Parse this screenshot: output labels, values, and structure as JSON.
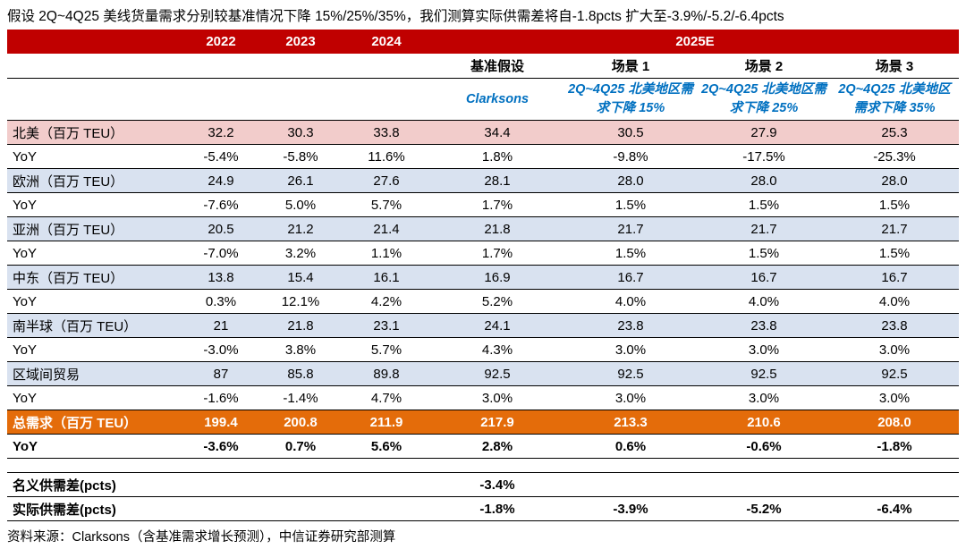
{
  "title": "假设 2Q~4Q25 美线货量需求分别较基准情况下降 15%/25%/35%，我们测算实际供需差将自-1.8pcts 扩大至-3.9%/-5.2/-6.4pcts",
  "source": "资料来源：Clarksons（含基准需求增长预测），中信证券研究部测算",
  "colors": {
    "header_red": "#C00000",
    "row_pink": "#F2CCCB",
    "row_blue": "#D9E2F0",
    "total_orange": "#E46C0A",
    "scenario_blue": "#0070C0"
  },
  "header": {
    "years": [
      "2022",
      "2023",
      "2024"
    ],
    "year_2025": "2025E",
    "sub": [
      "基准假设",
      "场景 1",
      "场景 2",
      "场景 3"
    ],
    "scenario_labels": [
      "Clarksons",
      "2Q~4Q25 北美地区需求下降 15%",
      "2Q~4Q25 北美地区需求下降 25%",
      "2Q~4Q25 北美地区需求下降 35%"
    ]
  },
  "table": {
    "rows": [
      {
        "label": "北美（百万 TEU）",
        "style": "pink",
        "values": [
          "32.2",
          "30.3",
          "33.8",
          "34.4",
          "30.5",
          "27.9",
          "25.3"
        ]
      },
      {
        "label": "YoY",
        "style": "plain",
        "values": [
          "-5.4%",
          "-5.8%",
          "11.6%",
          "1.8%",
          "-9.8%",
          "-17.5%",
          "-25.3%"
        ]
      },
      {
        "label": "欧洲（百万 TEU）",
        "style": "blue",
        "values": [
          "24.9",
          "26.1",
          "27.6",
          "28.1",
          "28.0",
          "28.0",
          "28.0"
        ]
      },
      {
        "label": "YoY",
        "style": "plain",
        "values": [
          "-7.6%",
          "5.0%",
          "5.7%",
          "1.7%",
          "1.5%",
          "1.5%",
          "1.5%"
        ]
      },
      {
        "label": "亚洲（百万 TEU）",
        "style": "blue",
        "values": [
          "20.5",
          "21.2",
          "21.4",
          "21.8",
          "21.7",
          "21.7",
          "21.7"
        ]
      },
      {
        "label": "YoY",
        "style": "plain",
        "values": [
          "-7.0%",
          "3.2%",
          "1.1%",
          "1.7%",
          "1.5%",
          "1.5%",
          "1.5%"
        ]
      },
      {
        "label": "中东（百万 TEU）",
        "style": "blue",
        "values": [
          "13.8",
          "15.4",
          "16.1",
          "16.9",
          "16.7",
          "16.7",
          "16.7"
        ]
      },
      {
        "label": "YoY",
        "style": "plain",
        "values": [
          "0.3%",
          "12.1%",
          "4.2%",
          "5.2%",
          "4.0%",
          "4.0%",
          "4.0%"
        ]
      },
      {
        "label": "南半球（百万 TEU）",
        "style": "blue",
        "values": [
          "21",
          "21.8",
          "23.1",
          "24.1",
          "23.8",
          "23.8",
          "23.8"
        ]
      },
      {
        "label": "YoY",
        "style": "plain",
        "values": [
          "-3.0%",
          "3.8%",
          "5.7%",
          "4.3%",
          "3.0%",
          "3.0%",
          "3.0%"
        ]
      },
      {
        "label": "区域间贸易",
        "style": "blue",
        "values": [
          "87",
          "85.8",
          "89.8",
          "92.5",
          "92.5",
          "92.5",
          "92.5"
        ]
      },
      {
        "label": "YoY",
        "style": "plain",
        "values": [
          "-1.6%",
          "-1.4%",
          "4.7%",
          "3.0%",
          "3.0%",
          "3.0%",
          "3.0%"
        ]
      },
      {
        "label": "总需求（百万 TEU）",
        "style": "orange",
        "values": [
          "199.4",
          "200.8",
          "211.9",
          "217.9",
          "213.3",
          "210.6",
          "208.0"
        ]
      },
      {
        "label": "YoY",
        "style": "bold",
        "values": [
          "-3.6%",
          "0.7%",
          "5.6%",
          "2.8%",
          "0.6%",
          "-0.6%",
          "-1.8%"
        ]
      },
      {
        "label": "",
        "style": "spacer",
        "values": [
          "",
          "",
          "",
          "",
          "",
          "",
          ""
        ]
      },
      {
        "label": "名义供需差(pcts)",
        "style": "gap",
        "values": [
          "",
          "",
          "",
          "-3.4%",
          "",
          "",
          ""
        ]
      },
      {
        "label": "实际供需差(pcts)",
        "style": "gap",
        "values": [
          "",
          "",
          "",
          "-1.8%",
          "-3.9%",
          "-5.2%",
          "-6.4%"
        ]
      }
    ]
  }
}
